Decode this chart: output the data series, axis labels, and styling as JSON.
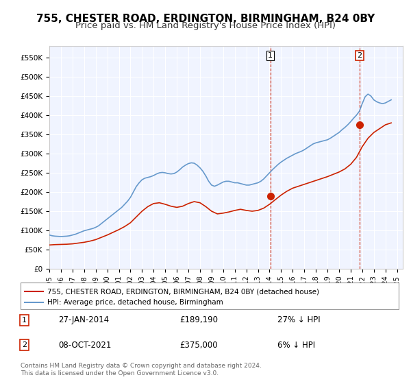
{
  "title": "755, CHESTER ROAD, ERDINGTON, BIRMINGHAM, B24 0BY",
  "subtitle": "Price paid vs. HM Land Registry's House Price Index (HPI)",
  "title_fontsize": 11,
  "subtitle_fontsize": 9.5,
  "ylabel_ticks": [
    "£0",
    "£50K",
    "£100K",
    "£150K",
    "£200K",
    "£250K",
    "£300K",
    "£350K",
    "£400K",
    "£450K",
    "£500K",
    "£550K"
  ],
  "ytick_values": [
    0,
    50000,
    100000,
    150000,
    200000,
    250000,
    300000,
    350000,
    400000,
    450000,
    500000,
    550000
  ],
  "ylim": [
    0,
    580000
  ],
  "xlim_start": 1995.0,
  "xlim_end": 2025.5,
  "hpi_color": "#6699cc",
  "price_color": "#cc2200",
  "background_color": "#f0f4ff",
  "legend_label_price": "755, CHESTER ROAD, ERDINGTON, BIRMINGHAM, B24 0BY (detached house)",
  "legend_label_hpi": "HPI: Average price, detached house, Birmingham",
  "transaction1_date": "27-JAN-2014",
  "transaction1_price": 189190,
  "transaction1_note": "27% ↓ HPI",
  "transaction1_x": 2014.07,
  "transaction2_date": "08-OCT-2021",
  "transaction2_price": 375000,
  "transaction2_note": "6% ↓ HPI",
  "transaction2_x": 2021.77,
  "footer": "Contains HM Land Registry data © Crown copyright and database right 2024.\nThis data is licensed under the Open Government Licence v3.0.",
  "hpi_years": [
    1995.0,
    1995.25,
    1995.5,
    1995.75,
    1996.0,
    1996.25,
    1996.5,
    1996.75,
    1997.0,
    1997.25,
    1997.5,
    1997.75,
    1998.0,
    1998.25,
    1998.5,
    1998.75,
    1999.0,
    1999.25,
    1999.5,
    1999.75,
    2000.0,
    2000.25,
    2000.5,
    2000.75,
    2001.0,
    2001.25,
    2001.5,
    2001.75,
    2002.0,
    2002.25,
    2002.5,
    2002.75,
    2003.0,
    2003.25,
    2003.5,
    2003.75,
    2004.0,
    2004.25,
    2004.5,
    2004.75,
    2005.0,
    2005.25,
    2005.5,
    2005.75,
    2006.0,
    2006.25,
    2006.5,
    2006.75,
    2007.0,
    2007.25,
    2007.5,
    2007.75,
    2008.0,
    2008.25,
    2008.5,
    2008.75,
    2009.0,
    2009.25,
    2009.5,
    2009.75,
    2010.0,
    2010.25,
    2010.5,
    2010.75,
    2011.0,
    2011.25,
    2011.5,
    2011.75,
    2012.0,
    2012.25,
    2012.5,
    2012.75,
    2013.0,
    2013.25,
    2013.5,
    2013.75,
    2014.0,
    2014.25,
    2014.5,
    2014.75,
    2015.0,
    2015.25,
    2015.5,
    2015.75,
    2016.0,
    2016.25,
    2016.5,
    2016.75,
    2017.0,
    2017.25,
    2017.5,
    2017.75,
    2018.0,
    2018.25,
    2018.5,
    2018.75,
    2019.0,
    2019.25,
    2019.5,
    2019.75,
    2020.0,
    2020.25,
    2020.5,
    2020.75,
    2021.0,
    2021.25,
    2021.5,
    2021.75,
    2022.0,
    2022.25,
    2022.5,
    2022.75,
    2023.0,
    2023.25,
    2023.5,
    2023.75,
    2024.0,
    2024.25,
    2024.5
  ],
  "hpi_values": [
    88000,
    86000,
    85000,
    84500,
    84000,
    84500,
    85000,
    86000,
    88000,
    90000,
    93000,
    96000,
    99000,
    101000,
    103000,
    105000,
    108000,
    112000,
    118000,
    124000,
    130000,
    136000,
    142000,
    148000,
    154000,
    160000,
    168000,
    176000,
    186000,
    200000,
    214000,
    224000,
    232000,
    236000,
    238000,
    240000,
    243000,
    247000,
    250000,
    251000,
    250000,
    248000,
    247000,
    248000,
    252000,
    258000,
    265000,
    270000,
    274000,
    276000,
    275000,
    270000,
    263000,
    254000,
    242000,
    228000,
    218000,
    215000,
    218000,
    222000,
    226000,
    228000,
    228000,
    226000,
    224000,
    224000,
    222000,
    220000,
    218000,
    218000,
    220000,
    222000,
    224000,
    228000,
    234000,
    242000,
    250000,
    258000,
    265000,
    272000,
    278000,
    283000,
    288000,
    292000,
    296000,
    300000,
    303000,
    306000,
    310000,
    315000,
    320000,
    325000,
    328000,
    330000,
    332000,
    334000,
    336000,
    340000,
    345000,
    350000,
    355000,
    362000,
    368000,
    375000,
    383000,
    392000,
    400000,
    410000,
    430000,
    448000,
    455000,
    450000,
    440000,
    435000,
    432000,
    430000,
    432000,
    436000,
    440000
  ],
  "price_years": [
    1995.0,
    1995.5,
    1996.0,
    1996.5,
    1997.0,
    1997.5,
    1998.0,
    1998.5,
    1999.0,
    1999.5,
    2000.0,
    2000.5,
    2001.0,
    2001.5,
    2002.0,
    2002.5,
    2003.0,
    2003.5,
    2004.0,
    2004.5,
    2005.0,
    2005.5,
    2006.0,
    2006.5,
    2007.0,
    2007.5,
    2008.0,
    2008.5,
    2009.0,
    2009.5,
    2010.0,
    2010.5,
    2011.0,
    2011.5,
    2012.0,
    2012.5,
    2013.0,
    2013.5,
    2014.0,
    2014.5,
    2015.0,
    2015.5,
    2016.0,
    2016.5,
    2017.0,
    2017.5,
    2018.0,
    2018.5,
    2019.0,
    2019.5,
    2020.0,
    2020.5,
    2021.0,
    2021.5,
    2022.0,
    2022.5,
    2023.0,
    2023.5,
    2024.0,
    2024.5
  ],
  "price_values": [
    62000,
    63000,
    63500,
    64000,
    65000,
    67000,
    69000,
    72000,
    76000,
    82000,
    88000,
    95000,
    102000,
    110000,
    120000,
    135000,
    150000,
    162000,
    170000,
    172000,
    168000,
    163000,
    160000,
    163000,
    170000,
    175000,
    172000,
    162000,
    150000,
    143000,
    145000,
    148000,
    152000,
    155000,
    152000,
    150000,
    152000,
    158000,
    168000,
    180000,
    192000,
    202000,
    210000,
    215000,
    220000,
    225000,
    230000,
    235000,
    240000,
    246000,
    252000,
    260000,
    272000,
    290000,
    318000,
    340000,
    355000,
    365000,
    375000,
    380000
  ]
}
